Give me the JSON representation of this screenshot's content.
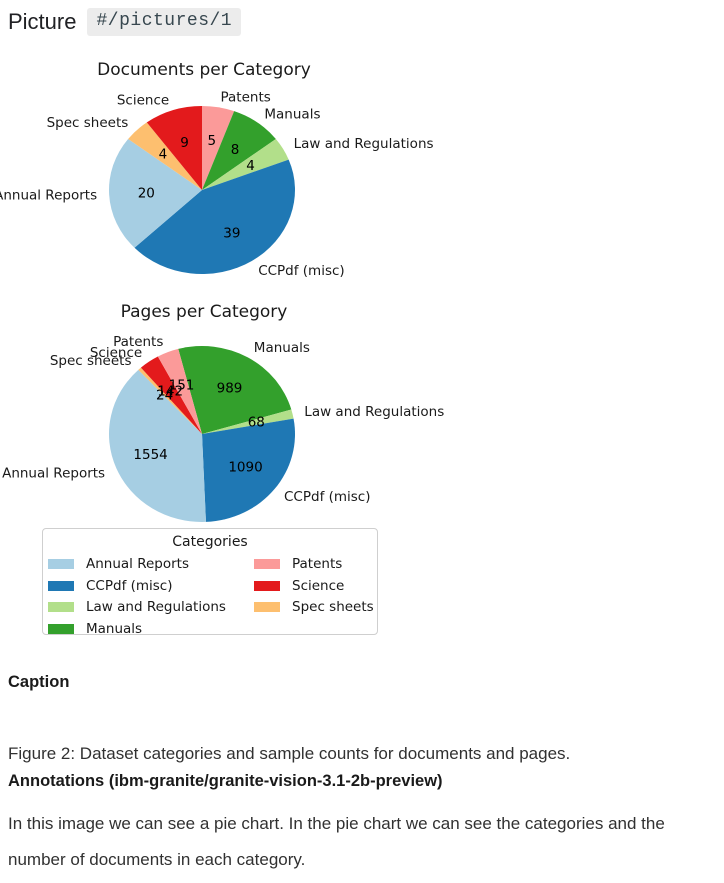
{
  "header": {
    "label": "Picture",
    "code": "#/pictures/1"
  },
  "chart_data": [
    {
      "type": "pie",
      "title": "Documents per Category",
      "categories": [
        "Patents",
        "Manuals",
        "Law and Regulations",
        "CCPdf (misc)",
        "Annual Reports",
        "Spec sheets",
        "Science"
      ],
      "values": [
        5,
        8,
        4,
        39,
        20,
        4,
        9
      ],
      "colors": [
        "#fb9a99",
        "#33a02c",
        "#b2df8a",
        "#1f78b4",
        "#a6cee3",
        "#fdbf6f",
        "#e31a1c"
      ],
      "start_angle_deg": 0,
      "direction": "clockwise",
      "value_labels": "inside",
      "category_labels": "outside"
    },
    {
      "type": "pie",
      "title": "Pages per Category",
      "categories": [
        "Manuals",
        "Law and Regulations",
        "CCPdf (misc)",
        "Annual Reports",
        "Spec sheets",
        "Science",
        "Patents"
      ],
      "values": [
        989,
        68,
        1090,
        1554,
        24,
        142,
        151
      ],
      "colors": [
        "#33a02c",
        "#b2df8a",
        "#1f78b4",
        "#a6cee3",
        "#fdbf6f",
        "#e31a1c",
        "#fb9a99"
      ],
      "start_angle_deg": -14.8,
      "direction": "clockwise",
      "value_labels": "inside",
      "category_labels": "outside"
    }
  ],
  "legend": {
    "title": "Categories",
    "position": "bottom",
    "entries": [
      {
        "label": "Annual Reports",
        "color": "#a6cee3"
      },
      {
        "label": "CCPdf (misc)",
        "color": "#1f78b4"
      },
      {
        "label": "Law and Regulations",
        "color": "#b2df8a"
      },
      {
        "label": "Manuals",
        "color": "#33a02c"
      },
      {
        "label": "Patents",
        "color": "#fb9a99"
      },
      {
        "label": "Science",
        "color": "#e31a1c"
      },
      {
        "label": "Spec sheets",
        "color": "#fdbf6f"
      }
    ]
  },
  "caption": {
    "heading": "Caption",
    "text": "Figure 2: Dataset categories and sample counts for documents and pages."
  },
  "annotations": {
    "heading": "Annotations (ibm-granite/granite-vision-3.1-2b-preview)",
    "text": "In this image we can see a pie chart. In the pie chart we can see the categories and the number of documents in each category."
  }
}
